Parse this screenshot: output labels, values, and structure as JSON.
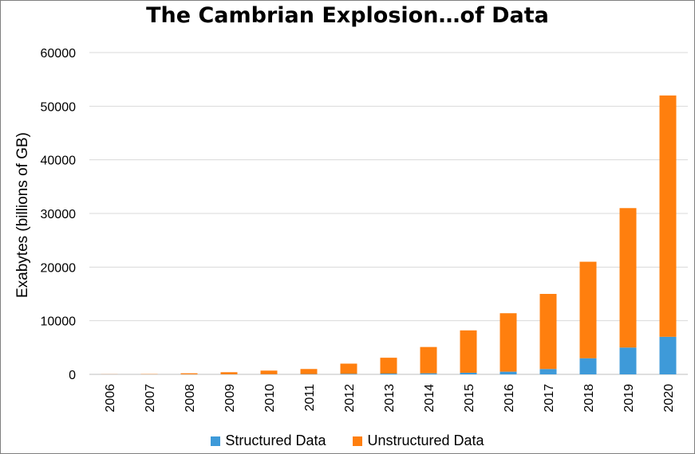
{
  "chart_data": {
    "type": "bar",
    "stacked": true,
    "title": "The Cambrian Explosion…of Data",
    "xlabel": "",
    "ylabel": "Exabytes (billions of GB)",
    "ylim": [
      0,
      60000
    ],
    "yticks": [
      0,
      10000,
      20000,
      30000,
      40000,
      50000,
      60000
    ],
    "grid": true,
    "legend_position": "bottom",
    "categories": [
      "2006",
      "2007",
      "2008",
      "2009",
      "2010",
      "2011",
      "2012",
      "2013",
      "2014",
      "2015",
      "2016",
      "2017",
      "2018",
      "2019",
      "2020"
    ],
    "series": [
      {
        "name": "Structured Data",
        "color": "#3e9ad9",
        "values": [
          0,
          0,
          10,
          20,
          30,
          50,
          100,
          150,
          200,
          300,
          500,
          1000,
          3000,
          5000,
          7000
        ]
      },
      {
        "name": "Unstructured Data",
        "color": "#ff7f0e",
        "values": [
          20,
          50,
          190,
          380,
          670,
          950,
          1900,
          2950,
          4900,
          7900,
          10900,
          14000,
          18000,
          26000,
          45000
        ]
      }
    ]
  }
}
